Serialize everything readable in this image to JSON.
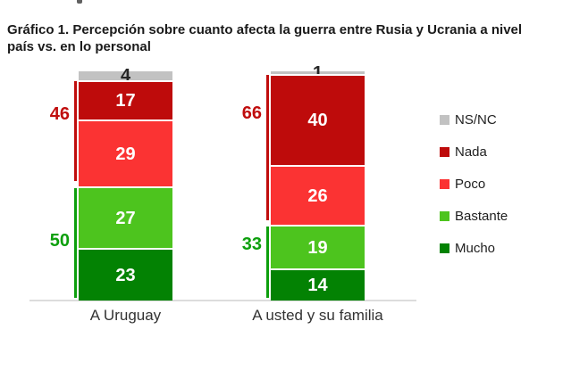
{
  "title": {
    "line1": "Gráfico 1. Percepción sobre cuanto afecta la guerra entre Rusia y Ucrania a nivel",
    "line2": "país vs. en lo personal"
  },
  "chart_data": {
    "type": "bar",
    "stacked": true,
    "orientation": "vertical",
    "title": "Gráfico 1. Percepción sobre cuanto afecta la guerra entre Rusia y Ucrania a nivel país vs. en lo personal",
    "categories": [
      "A Uruguay",
      "A usted y su familia"
    ],
    "stack_order_top_to_bottom": [
      "NS/NC",
      "Nada",
      "Poco",
      "Bastante",
      "Mucho"
    ],
    "series": [
      {
        "name": "NS/NC",
        "color": "#C2C2C2",
        "values": [
          4,
          1
        ]
      },
      {
        "name": "Nada",
        "color": "#BE0B0B",
        "values": [
          17,
          40
        ]
      },
      {
        "name": "Poco",
        "color": "#FB3333",
        "values": [
          29,
          26
        ]
      },
      {
        "name": "Bastante",
        "color": "#4DC41E",
        "values": [
          27,
          19
        ]
      },
      {
        "name": "Mucho",
        "color": "#038203",
        "values": [
          23,
          14
        ]
      }
    ],
    "group_brackets": [
      {
        "category": "A Uruguay",
        "nada_poco_total": 46,
        "bastante_mucho_total": 50
      },
      {
        "category": "A usted y su familia",
        "nada_poco_total": 66,
        "bastante_mucho_total": 33
      }
    ],
    "ylim": [
      0,
      100
    ],
    "grid": false,
    "legend_position": "right",
    "legend_items": [
      "NS/NC",
      "Nada",
      "Poco",
      "Bastante",
      "Mucho"
    ]
  },
  "colors": {
    "nsnc_label_text": "#262626",
    "segment_label_text": "#FFFFFF",
    "bracket_red": "#C00D0D",
    "bracket_green": "#0D9F0D",
    "baseline": "#DCDCDC",
    "title_text": "#1A1A1A",
    "category_label_text": "#333333"
  }
}
